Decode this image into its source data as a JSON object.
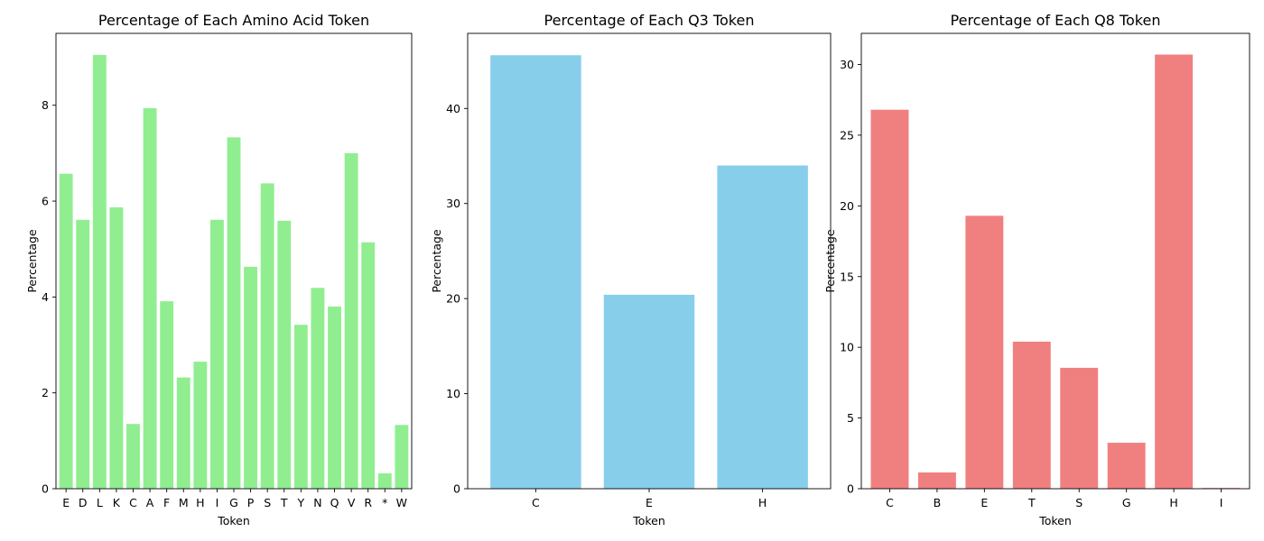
{
  "chart_data": [
    {
      "type": "bar",
      "title": "Percentage of Each Amino Acid Token",
      "xlabel": "Token",
      "ylabel": "Percentage",
      "categories": [
        "E",
        "D",
        "L",
        "K",
        "C",
        "A",
        "F",
        "M",
        "H",
        "I",
        "G",
        "P",
        "S",
        "T",
        "Y",
        "N",
        "Q",
        "V",
        "R",
        "*",
        "W"
      ],
      "values": [
        6.57,
        5.61,
        9.05,
        5.87,
        1.35,
        7.94,
        3.91,
        2.32,
        2.65,
        5.61,
        7.33,
        4.63,
        6.37,
        5.59,
        3.42,
        4.19,
        3.8,
        7.0,
        5.14,
        0.32,
        1.33
      ],
      "ylim": [
        0,
        9.5
      ],
      "yticks": [
        0,
        2,
        4,
        6,
        8
      ],
      "color": "#90ee90",
      "grid": false
    },
    {
      "type": "bar",
      "title": "Percentage of Each Q3 Token",
      "xlabel": "Token",
      "ylabel": "Percentage",
      "categories": [
        "C",
        "E",
        "H"
      ],
      "values": [
        45.6,
        20.4,
        34.0
      ],
      "ylim": [
        0,
        47.9
      ],
      "yticks": [
        0,
        10,
        20,
        30,
        40
      ],
      "color": "#87ceeb",
      "grid": false
    },
    {
      "type": "bar",
      "title": "Percentage of Each Q8 Token",
      "xlabel": "Token",
      "ylabel": "Percentage",
      "categories": [
        "C",
        "B",
        "E",
        "T",
        "S",
        "G",
        "H",
        "I"
      ],
      "values": [
        26.8,
        1.15,
        19.3,
        10.4,
        8.55,
        3.25,
        30.7,
        0.05
      ],
      "ylim": [
        0,
        32.2
      ],
      "yticks": [
        0,
        5,
        10,
        15,
        20,
        25,
        30
      ],
      "color": "#f08080",
      "grid": false
    }
  ]
}
